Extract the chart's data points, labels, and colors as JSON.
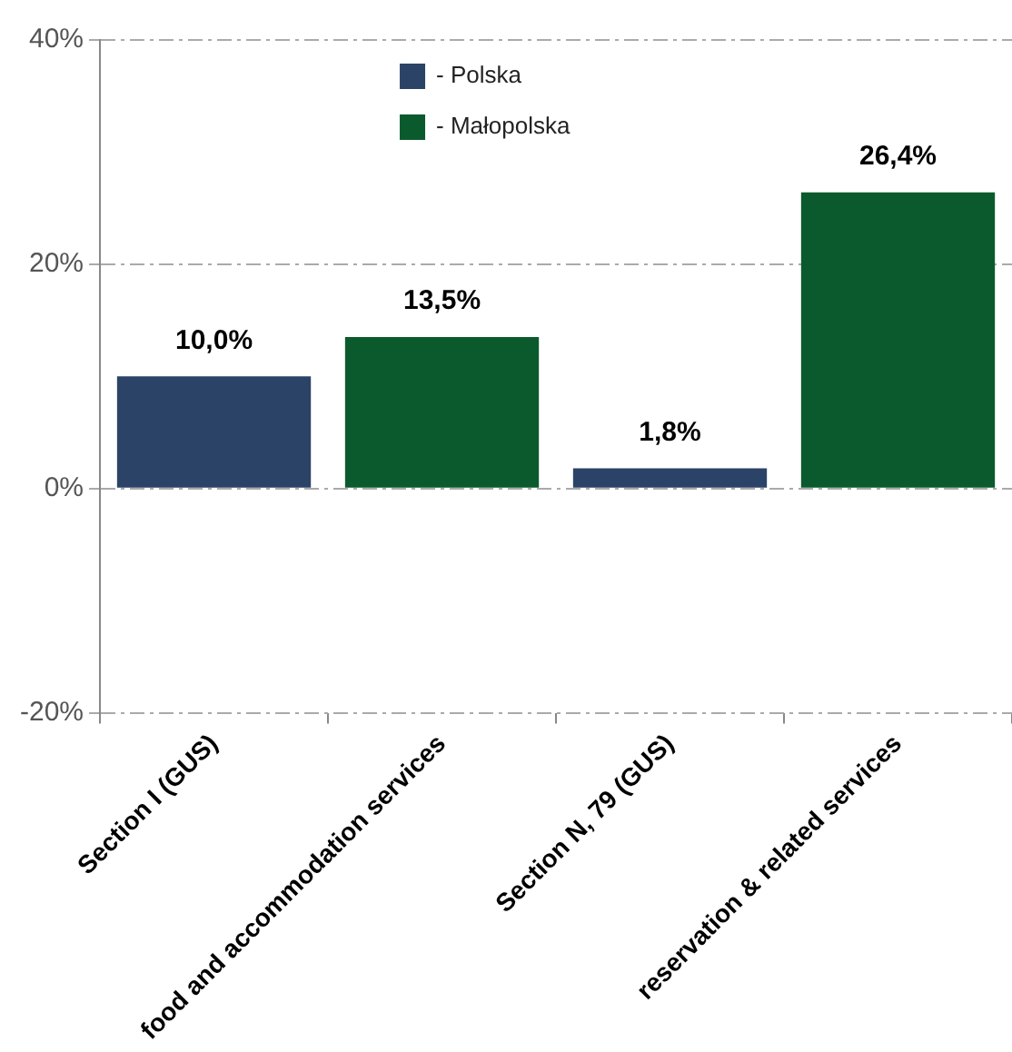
{
  "chart_data": {
    "type": "bar",
    "categories": [
      "Section I (GUS)",
      "food and accommodation services",
      "Section N, 79 (GUS)",
      "reservation & related services"
    ],
    "series": [
      {
        "name": "- Polska",
        "color": "#2c4368",
        "values": [
          10.0,
          null,
          1.8,
          null
        ],
        "value_labels": [
          "10,0%",
          null,
          "1,8%",
          null
        ]
      },
      {
        "name": "- Małopolska",
        "color": "#0a5a2d",
        "values": [
          null,
          13.5,
          null,
          26.4
        ],
        "value_labels": [
          null,
          "13,5%",
          null,
          "26,4%"
        ]
      }
    ],
    "ylim": [
      -20,
      40
    ],
    "yticks": [
      {
        "value": -20,
        "label": "-20%"
      },
      {
        "value": 0,
        "label": "0%"
      },
      {
        "value": 20,
        "label": "20%"
      },
      {
        "value": 40,
        "label": "40%"
      }
    ],
    "grid": "y",
    "legend": "top"
  }
}
